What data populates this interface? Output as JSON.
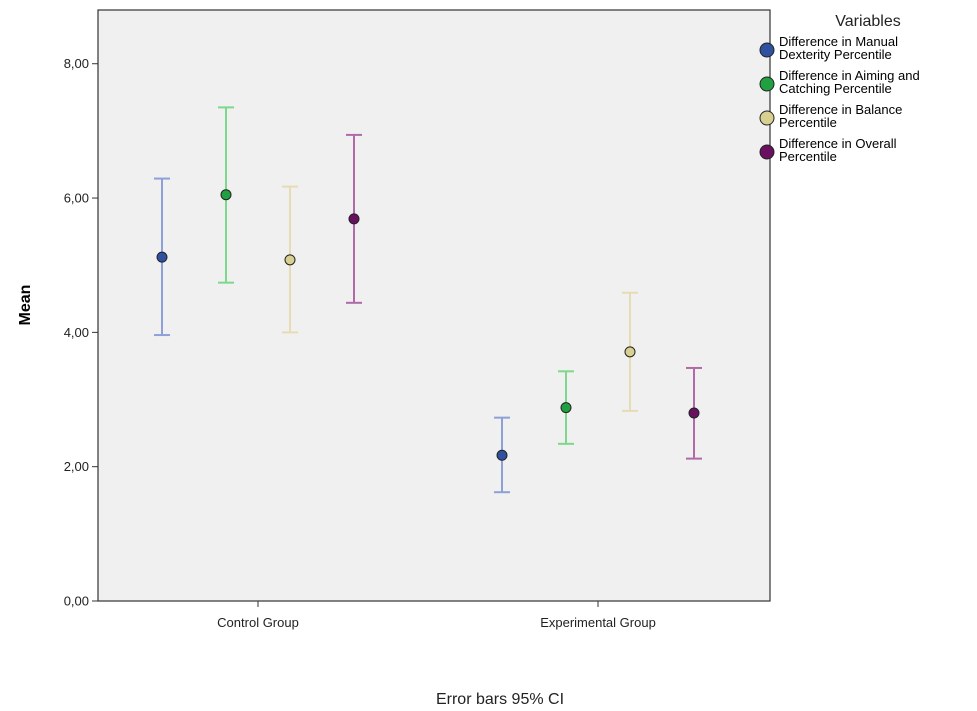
{
  "chart_data": {
    "type": "scatter",
    "subtype": "error-bar",
    "ylabel": "Mean",
    "ylim": [
      0,
      8.8
    ],
    "yticks": [
      "0,00",
      "2,00",
      "4,00",
      "6,00",
      "8,00"
    ],
    "ytick_values": [
      0,
      2,
      4,
      6,
      8
    ],
    "categories": [
      "Control Group",
      "Experimental Group"
    ],
    "legend_title": "Variables",
    "legend_position": "top-right, outside plot",
    "footnote": "Error bars 95% CI",
    "grid": false,
    "plot_background": "#f0f0f0",
    "series": [
      {
        "name_lines": [
          "Difference in Manual",
          "Dexterity Percentile"
        ],
        "color": "#3050a0",
        "bar_color": "#8da0d8",
        "means": [
          5.12,
          2.17
        ],
        "lower": [
          3.96,
          1.62
        ],
        "upper": [
          6.29,
          2.73
        ]
      },
      {
        "name_lines": [
          "Difference in Aiming and",
          "Catching Percentile"
        ],
        "color": "#20a040",
        "bar_color": "#7dd88d",
        "means": [
          6.05,
          2.88
        ],
        "lower": [
          4.74,
          2.34
        ],
        "upper": [
          7.35,
          3.42
        ]
      },
      {
        "name_lines": [
          "Difference in Balance",
          "Percentile"
        ],
        "color": "#d8d090",
        "bar_color": "#e6dcb4",
        "means": [
          5.08,
          3.71
        ],
        "lower": [
          4.0,
          2.83
        ],
        "upper": [
          6.17,
          4.59
        ]
      },
      {
        "name_lines": [
          "Difference in Overall",
          "Percentile"
        ],
        "color": "#6a1060",
        "bar_color": "#b06aa8",
        "means": [
          5.69,
          2.8
        ],
        "lower": [
          4.44,
          2.12
        ],
        "upper": [
          6.94,
          3.47
        ]
      }
    ]
  }
}
